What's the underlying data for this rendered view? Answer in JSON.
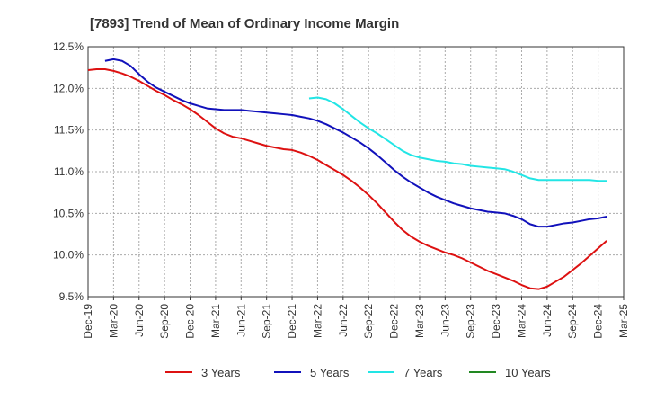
{
  "chart_data": {
    "type": "line",
    "title": "[7893]  Trend of Mean of Ordinary Income Margin",
    "xlabel": "",
    "ylabel": "",
    "ylim": [
      9.5,
      12.5
    ],
    "yticks": [
      12.5,
      12.0,
      11.5,
      11.0,
      10.5,
      10.0,
      9.5
    ],
    "ytick_labels": [
      "12.5%",
      "12.0%",
      "11.5%",
      "11.0%",
      "10.5%",
      "10.0%",
      "9.5%"
    ],
    "x_ticks": [
      "Dec-19",
      "Mar-20",
      "Jun-20",
      "Sep-20",
      "Dec-20",
      "Mar-21",
      "Jun-21",
      "Sep-21",
      "Dec-21",
      "Mar-22",
      "Jun-22",
      "Sep-22",
      "Dec-22",
      "Mar-23",
      "Jun-23",
      "Sep-23",
      "Dec-23",
      "Mar-24",
      "Jun-24",
      "Sep-24",
      "Dec-24",
      "Mar-25"
    ],
    "grid": true,
    "legend_position": "bottom",
    "series": [
      {
        "name": "3 Years",
        "color": "#dd1111",
        "points": [
          [
            "Dec-19",
            12.22
          ],
          [
            "Jan-20",
            12.23
          ],
          [
            "Feb-20",
            12.23
          ],
          [
            "Mar-20",
            12.21
          ],
          [
            "Apr-20",
            12.18
          ],
          [
            "May-20",
            12.14
          ],
          [
            "Jun-20",
            12.09
          ],
          [
            "Jul-20",
            12.03
          ],
          [
            "Aug-20",
            11.97
          ],
          [
            "Sep-20",
            11.92
          ],
          [
            "Oct-20",
            11.86
          ],
          [
            "Nov-20",
            11.81
          ],
          [
            "Dec-20",
            11.75
          ],
          [
            "Jan-21",
            11.68
          ],
          [
            "Feb-21",
            11.6
          ],
          [
            "Mar-21",
            11.52
          ],
          [
            "Apr-21",
            11.46
          ],
          [
            "May-21",
            11.42
          ],
          [
            "Jun-21",
            11.4
          ],
          [
            "Jul-21",
            11.37
          ],
          [
            "Aug-21",
            11.34
          ],
          [
            "Sep-21",
            11.31
          ],
          [
            "Oct-21",
            11.29
          ],
          [
            "Nov-21",
            11.27
          ],
          [
            "Dec-21",
            11.26
          ],
          [
            "Jan-22",
            11.23
          ],
          [
            "Feb-22",
            11.19
          ],
          [
            "Mar-22",
            11.14
          ],
          [
            "Apr-22",
            11.08
          ],
          [
            "May-22",
            11.02
          ],
          [
            "Jun-22",
            10.96
          ],
          [
            "Jul-22",
            10.89
          ],
          [
            "Aug-22",
            10.81
          ],
          [
            "Sep-22",
            10.72
          ],
          [
            "Oct-22",
            10.62
          ],
          [
            "Nov-22",
            10.51
          ],
          [
            "Dec-22",
            10.4
          ],
          [
            "Jan-23",
            10.3
          ],
          [
            "Feb-23",
            10.22
          ],
          [
            "Mar-23",
            10.16
          ],
          [
            "Apr-23",
            10.11
          ],
          [
            "May-23",
            10.07
          ],
          [
            "Jun-23",
            10.03
          ],
          [
            "Jul-23",
            10.0
          ],
          [
            "Aug-23",
            9.96
          ],
          [
            "Sep-23",
            9.91
          ],
          [
            "Oct-23",
            9.86
          ],
          [
            "Nov-23",
            9.81
          ],
          [
            "Dec-23",
            9.77
          ],
          [
            "Jan-24",
            9.73
          ],
          [
            "Feb-24",
            9.69
          ],
          [
            "Mar-24",
            9.64
          ],
          [
            "Apr-24",
            9.6
          ],
          [
            "May-24",
            9.59
          ],
          [
            "Jun-24",
            9.62
          ],
          [
            "Jul-24",
            9.68
          ],
          [
            "Aug-24",
            9.74
          ],
          [
            "Sep-24",
            9.82
          ],
          [
            "Oct-24",
            9.9
          ],
          [
            "Nov-24",
            9.99
          ],
          [
            "Dec-24",
            10.08
          ],
          [
            "Jan-25",
            10.17
          ]
        ]
      },
      {
        "name": "5 Years",
        "color": "#1111bb",
        "points": [
          [
            "Feb-20",
            12.33
          ],
          [
            "Mar-20",
            12.35
          ],
          [
            "Apr-20",
            12.33
          ],
          [
            "May-20",
            12.27
          ],
          [
            "Jun-20",
            12.17
          ],
          [
            "Jul-20",
            12.08
          ],
          [
            "Aug-20",
            12.01
          ],
          [
            "Sep-20",
            11.96
          ],
          [
            "Oct-20",
            11.91
          ],
          [
            "Nov-20",
            11.86
          ],
          [
            "Dec-20",
            11.82
          ],
          [
            "Jan-21",
            11.79
          ],
          [
            "Feb-21",
            11.76
          ],
          [
            "Mar-21",
            11.75
          ],
          [
            "Apr-21",
            11.74
          ],
          [
            "May-21",
            11.74
          ],
          [
            "Jun-21",
            11.74
          ],
          [
            "Jul-21",
            11.73
          ],
          [
            "Aug-21",
            11.72
          ],
          [
            "Sep-21",
            11.71
          ],
          [
            "Oct-21",
            11.7
          ],
          [
            "Nov-21",
            11.69
          ],
          [
            "Dec-21",
            11.68
          ],
          [
            "Jan-22",
            11.66
          ],
          [
            "Feb-22",
            11.64
          ],
          [
            "Mar-22",
            11.61
          ],
          [
            "Apr-22",
            11.57
          ],
          [
            "May-22",
            11.52
          ],
          [
            "Jun-22",
            11.47
          ],
          [
            "Jul-22",
            11.41
          ],
          [
            "Aug-22",
            11.35
          ],
          [
            "Sep-22",
            11.28
          ],
          [
            "Oct-22",
            11.2
          ],
          [
            "Nov-22",
            11.11
          ],
          [
            "Dec-22",
            11.02
          ],
          [
            "Jan-23",
            10.94
          ],
          [
            "Feb-23",
            10.87
          ],
          [
            "Mar-23",
            10.81
          ],
          [
            "Apr-23",
            10.75
          ],
          [
            "May-23",
            10.7
          ],
          [
            "Jun-23",
            10.66
          ],
          [
            "Jul-23",
            10.62
          ],
          [
            "Aug-23",
            10.59
          ],
          [
            "Sep-23",
            10.56
          ],
          [
            "Oct-23",
            10.54
          ],
          [
            "Nov-23",
            10.52
          ],
          [
            "Dec-23",
            10.51
          ],
          [
            "Jan-24",
            10.5
          ],
          [
            "Feb-24",
            10.47
          ],
          [
            "Mar-24",
            10.43
          ],
          [
            "Apr-24",
            10.37
          ],
          [
            "May-24",
            10.34
          ],
          [
            "Jun-24",
            10.34
          ],
          [
            "Jul-24",
            10.36
          ],
          [
            "Aug-24",
            10.38
          ],
          [
            "Sep-24",
            10.39
          ],
          [
            "Oct-24",
            10.41
          ],
          [
            "Nov-24",
            10.43
          ],
          [
            "Dec-24",
            10.44
          ],
          [
            "Jan-25",
            10.46
          ]
        ]
      },
      {
        "name": "7 Years",
        "color": "#22e5e5",
        "points": [
          [
            "Feb-22",
            11.88
          ],
          [
            "Mar-22",
            11.89
          ],
          [
            "Apr-22",
            11.87
          ],
          [
            "May-22",
            11.82
          ],
          [
            "Jun-22",
            11.75
          ],
          [
            "Jul-22",
            11.67
          ],
          [
            "Aug-22",
            11.59
          ],
          [
            "Sep-22",
            11.52
          ],
          [
            "Oct-22",
            11.46
          ],
          [
            "Nov-22",
            11.39
          ],
          [
            "Dec-22",
            11.32
          ],
          [
            "Jan-23",
            11.25
          ],
          [
            "Feb-23",
            11.2
          ],
          [
            "Mar-23",
            11.17
          ],
          [
            "Apr-23",
            11.15
          ],
          [
            "May-23",
            11.13
          ],
          [
            "Jun-23",
            11.12
          ],
          [
            "Jul-23",
            11.1
          ],
          [
            "Aug-23",
            11.09
          ],
          [
            "Sep-23",
            11.07
          ],
          [
            "Oct-23",
            11.06
          ],
          [
            "Nov-23",
            11.05
          ],
          [
            "Dec-23",
            11.04
          ],
          [
            "Jan-24",
            11.03
          ],
          [
            "Feb-24",
            11.0
          ],
          [
            "Mar-24",
            10.96
          ],
          [
            "Apr-24",
            10.92
          ],
          [
            "May-24",
            10.9
          ],
          [
            "Jun-24",
            10.9
          ],
          [
            "Jul-24",
            10.9
          ],
          [
            "Aug-24",
            10.9
          ],
          [
            "Sep-24",
            10.9
          ],
          [
            "Oct-24",
            10.9
          ],
          [
            "Nov-24",
            10.9
          ],
          [
            "Dec-24",
            10.89
          ],
          [
            "Jan-25",
            10.89
          ]
        ]
      },
      {
        "name": "10 Years",
        "color": "#228822",
        "points": []
      }
    ]
  }
}
